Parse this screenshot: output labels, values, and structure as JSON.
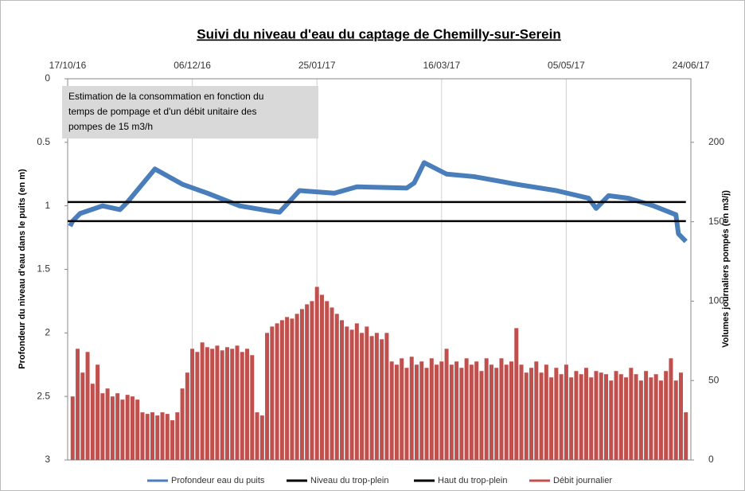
{
  "chart_data": {
    "type": "combo",
    "title": "Suivi du niveau d'eau du captage de Chemilly-sur-Serein",
    "annotation": [
      "Estimation de la consommation en fonction du",
      "temps de pompage et d'un débit unitaire des",
      "pompes de 15 m3/h"
    ],
    "y_label": "Profondeur  du niveau  d'eau dans le puits (en m)",
    "y2_label": "Volumes journaliers pompés (en m3/j)",
    "xlim": [
      0,
      250
    ],
    "xticks": [
      {
        "value": 0,
        "label": "17/10/16"
      },
      {
        "value": 50,
        "label": "06/12/16"
      },
      {
        "value": 100,
        "label": "25/01/17"
      },
      {
        "value": 150,
        "label": "16/03/17"
      },
      {
        "value": 200,
        "label": "05/05/17"
      },
      {
        "value": 250,
        "label": "24/06/17"
      }
    ],
    "ylim": [
      0,
      3
    ],
    "y_inverted": true,
    "yticks": [
      0,
      0.5,
      1,
      1.5,
      2,
      2.5,
      3
    ],
    "y2lim": [
      0,
      240
    ],
    "y2ticks": [
      0,
      50,
      100,
      150,
      200
    ],
    "grid": true,
    "legend": "bottom",
    "series": [
      {
        "name": "Profondeur eau du puits",
        "kind": "line",
        "color": "#4a7ebb",
        "x": [
          1,
          2,
          5,
          14,
          21,
          24,
          35,
          46,
          56,
          69,
          81,
          85,
          93,
          107,
          116,
          136,
          139,
          143,
          152,
          163,
          180,
          196,
          209,
          212,
          217,
          225,
          235,
          244,
          245,
          248
        ],
        "values": [
          1.16,
          1.12,
          1.06,
          1.0,
          1.03,
          0.97,
          0.71,
          0.83,
          0.9,
          1.0,
          1.04,
          1.05,
          0.88,
          0.9,
          0.85,
          0.86,
          0.82,
          0.66,
          0.75,
          0.77,
          0.83,
          0.88,
          0.94,
          1.02,
          0.92,
          0.94,
          1.0,
          1.07,
          1.22,
          1.28
        ]
      },
      {
        "name": "Niveau du trop-plein",
        "kind": "line",
        "color": "#000000",
        "x": [
          0,
          248
        ],
        "values": [
          0.97,
          0.97
        ]
      },
      {
        "name": "Haut du trop-plein",
        "kind": "line",
        "color": "#000000",
        "x": [
          0,
          248
        ],
        "values": [
          1.12,
          1.12
        ]
      },
      {
        "name": "Débit journalier",
        "kind": "bar",
        "axis": "y2",
        "color": "#c0504d",
        "x": [
          2,
          4,
          6,
          8,
          10,
          12,
          14,
          16,
          18,
          20,
          22,
          24,
          26,
          28,
          30,
          32,
          34,
          36,
          38,
          40,
          42,
          44,
          46,
          48,
          50,
          52,
          54,
          56,
          58,
          60,
          62,
          64,
          66,
          68,
          70,
          72,
          74,
          76,
          78,
          80,
          82,
          84,
          86,
          88,
          90,
          92,
          94,
          96,
          98,
          100,
          102,
          104,
          106,
          108,
          110,
          112,
          114,
          116,
          118,
          120,
          122,
          124,
          126,
          128,
          130,
          132,
          134,
          136,
          138,
          140,
          142,
          144,
          146,
          148,
          150,
          152,
          154,
          156,
          158,
          160,
          162,
          164,
          166,
          168,
          170,
          172,
          174,
          176,
          178,
          180,
          182,
          184,
          186,
          188,
          190,
          192,
          194,
          196,
          198,
          200,
          202,
          204,
          206,
          208,
          210,
          212,
          214,
          216,
          218,
          220,
          222,
          224,
          226,
          228,
          230,
          232,
          234,
          236,
          238,
          240,
          242,
          244,
          246,
          248
        ],
        "values": [
          40,
          70,
          55,
          68,
          48,
          60,
          42,
          45,
          40,
          42,
          38,
          41,
          40,
          38,
          30,
          29,
          30,
          28,
          30,
          29,
          25,
          30,
          45,
          55,
          70,
          68,
          74,
          71,
          70,
          72,
          69,
          71,
          70,
          72,
          68,
          70,
          66,
          30,
          28,
          80,
          84,
          86,
          88,
          90,
          89,
          92,
          95,
          98,
          100,
          109,
          104,
          100,
          96,
          92,
          88,
          84,
          82,
          86,
          80,
          84,
          78,
          80,
          76,
          80,
          62,
          60,
          64,
          58,
          65,
          60,
          62,
          58,
          64,
          60,
          62,
          70,
          60,
          62,
          58,
          64,
          60,
          62,
          56,
          64,
          60,
          58,
          64,
          60,
          62,
          83,
          60,
          55,
          58,
          62,
          55,
          60,
          52,
          58,
          54,
          60,
          52,
          56,
          54,
          58,
          52,
          56,
          55,
          54,
          50,
          56,
          54,
          52,
          58,
          54,
          50,
          56,
          52,
          54,
          50,
          56,
          64,
          50,
          55,
          30
        ]
      }
    ]
  }
}
